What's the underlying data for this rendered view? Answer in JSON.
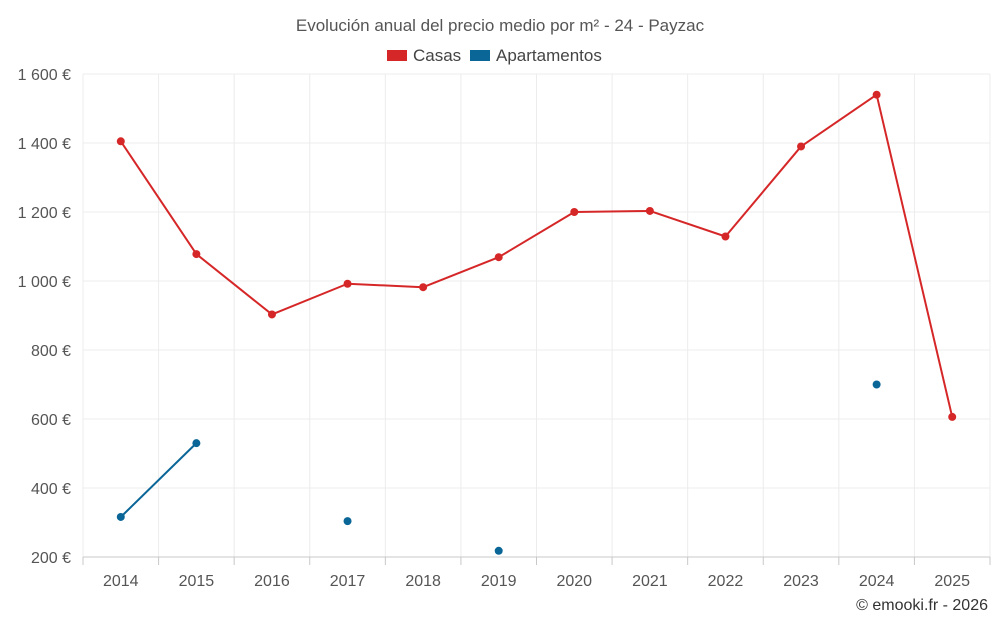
{
  "chart_data": {
    "type": "line",
    "title": "Evolución anual del precio medio por m² - 24 - Payzac",
    "categories": [
      "2014",
      "2015",
      "2016",
      "2017",
      "2018",
      "2019",
      "2020",
      "2021",
      "2022",
      "2023",
      "2024",
      "2025"
    ],
    "series": [
      {
        "name": "Casas",
        "color": "#d62728",
        "values": [
          1405,
          1078,
          903,
          992,
          982,
          1069,
          1200,
          1203,
          1129,
          1390,
          1540,
          606
        ]
      },
      {
        "name": "Apartamentos",
        "color": "#0b6698",
        "values": [
          316,
          530,
          null,
          304,
          null,
          218,
          null,
          null,
          null,
          null,
          700,
          null
        ]
      }
    ],
    "y_ticks": [
      200,
      400,
      600,
      800,
      1000,
      1200,
      1400,
      1600
    ],
    "y_tick_labels": [
      "200 €",
      "400 €",
      "600 €",
      "800 €",
      "1 000 €",
      "1 200 €",
      "1 400 €",
      "1 600 €"
    ],
    "ylim": [
      200,
      1600
    ],
    "xlabel": "",
    "ylabel": "",
    "legend_position": "top-center",
    "grid": true
  },
  "credit": "© emooki.fr - 2026"
}
